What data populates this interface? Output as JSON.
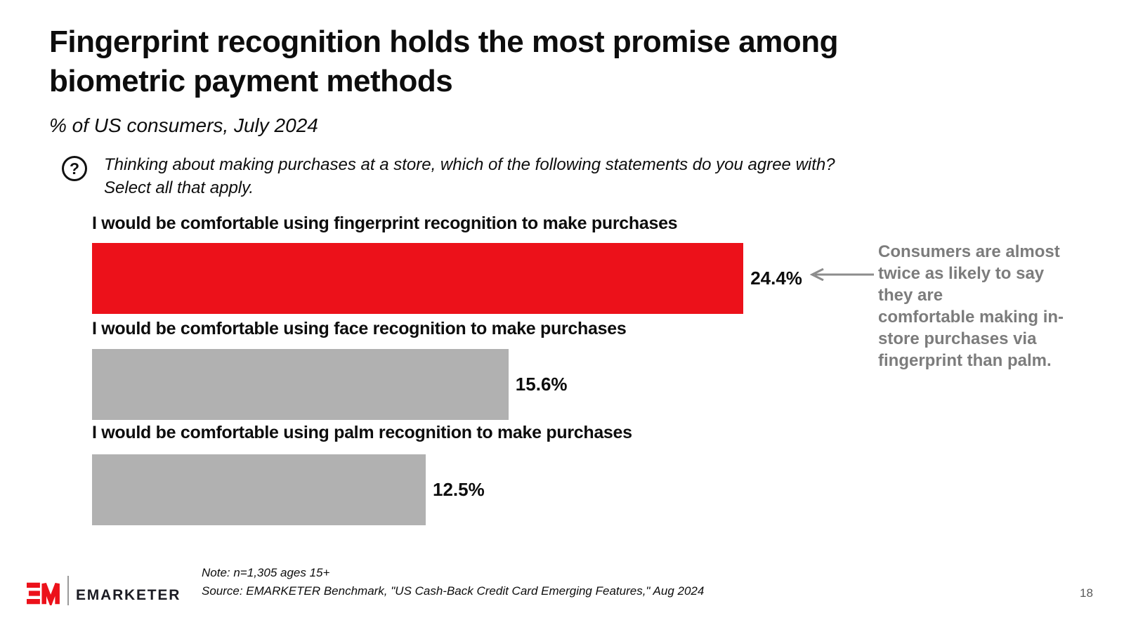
{
  "header": {
    "title": "Fingerprint recognition holds the most promise among\nbiometric payment methods",
    "subtitle": "% of US consumers, July 2024"
  },
  "question": {
    "icon_glyph": "?",
    "text": "Thinking about making purchases at a store, which of the following statements do you agree with?\nSelect all that apply."
  },
  "chart_data": {
    "type": "bar",
    "orientation": "horizontal",
    "title": "% of US consumers, July 2024",
    "categories": [
      "I would be comfortable using fingerprint recognition to make purchases",
      "I would be comfortable using face recognition to make purchases",
      "I would be comfortable using palm recognition to make purchases"
    ],
    "values": [
      24.4,
      15.6,
      12.5
    ],
    "value_labels": [
      "24.4%",
      "15.6%",
      "12.5%"
    ],
    "bar_colors": [
      "#ec111a",
      "#b1b1b1",
      "#b1b1b1"
    ],
    "xlim": [
      0,
      25
    ],
    "grid": false,
    "legend": false,
    "highlight_color": "#ec111a",
    "default_color": "#b1b1b1"
  },
  "annotation": {
    "text": "Consumers are almost\ntwice as likely to say\nthey are\ncomfortable making in-\nstore purchases via\nfingerprint than palm.",
    "color": "#7c7c7c",
    "arrow_direction": "left",
    "arrow_color": "#8c8c8c"
  },
  "footer": {
    "brand": "EMARKETER",
    "logo_mark": "EM",
    "note": "Note: n=1,305 ages 15+",
    "source": "Source: EMARKETER Benchmark, \"US Cash-Back Credit Card Emerging Features,\" Aug 2024",
    "page_number": "18"
  }
}
